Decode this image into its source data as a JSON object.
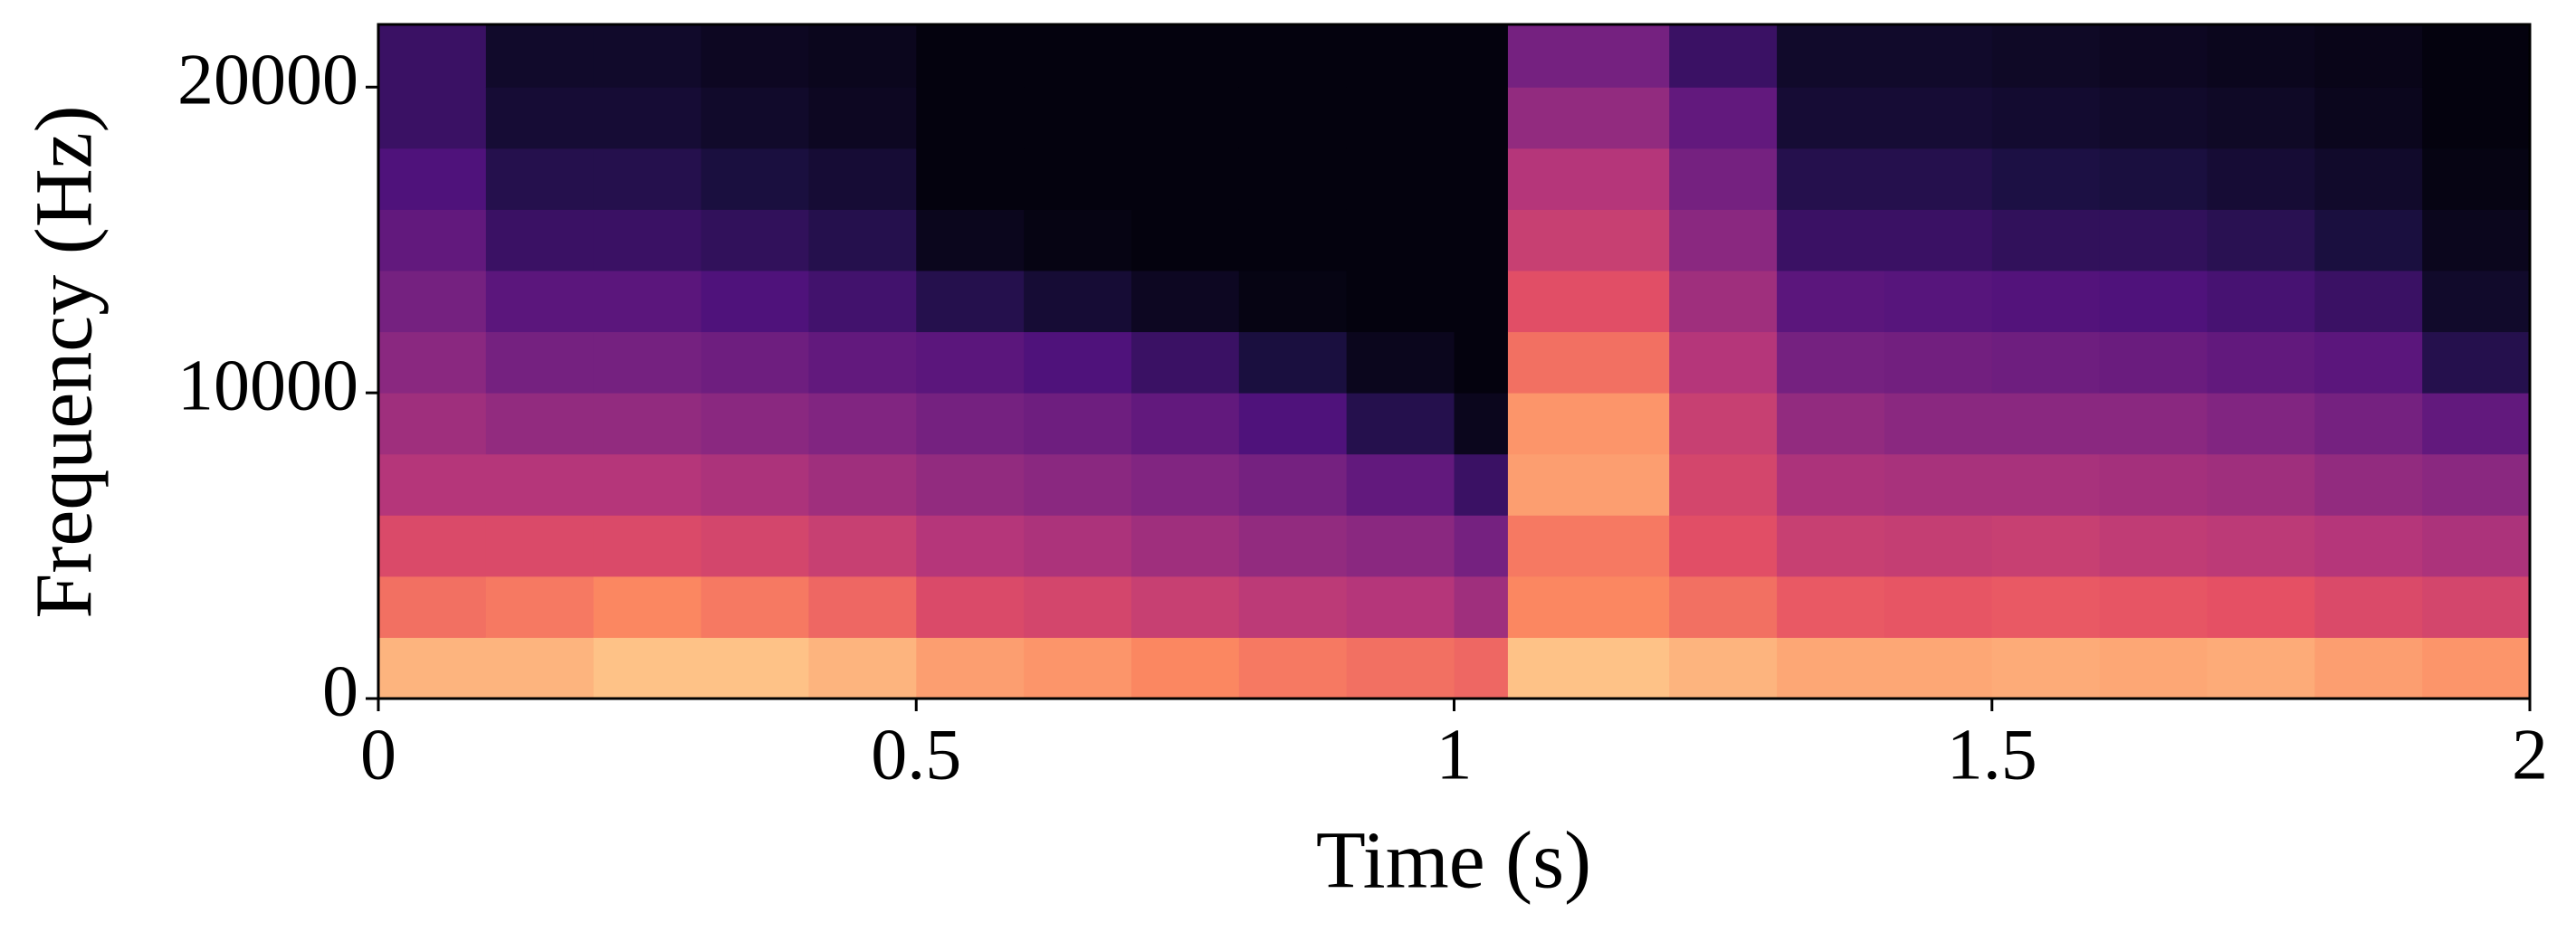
{
  "chart_data": {
    "type": "spectrogram",
    "xlabel": "Time (s)",
    "ylabel": "Frequency (Hz)",
    "xlim": [
      0,
      2
    ],
    "xticks": [
      0,
      {
        "value": 0.5,
        "label": "0.5"
      },
      1,
      {
        "value": 1.5,
        "label": "1.5"
      },
      2
    ],
    "ylim": [
      0,
      22050
    ],
    "yticks": [
      0,
      10000,
      20000
    ],
    "colormap": "magma",
    "x": [
      0,
      0.1,
      0.2,
      0.3,
      0.4,
      0.5,
      0.6,
      0.7,
      0.8,
      0.9,
      1.0,
      1.05,
      1.2,
      1.3,
      1.4,
      1.5,
      1.6,
      1.7,
      1.8,
      1.9
    ],
    "y": [
      0,
      2000,
      4000,
      6000,
      8000,
      10000,
      12000,
      14000,
      16000,
      18000,
      20000
    ],
    "values": [
      [
        0.85,
        0.7,
        0.6,
        0.5,
        0.45,
        0.4,
        0.35,
        0.3,
        0.25,
        0.2,
        0.2
      ],
      [
        0.85,
        0.72,
        0.6,
        0.5,
        0.42,
        0.35,
        0.28,
        0.2,
        0.15,
        0.1,
        0.08
      ],
      [
        0.88,
        0.75,
        0.6,
        0.5,
        0.42,
        0.35,
        0.28,
        0.2,
        0.15,
        0.1,
        0.08
      ],
      [
        0.88,
        0.72,
        0.58,
        0.48,
        0.4,
        0.33,
        0.25,
        0.18,
        0.12,
        0.08,
        0.06
      ],
      [
        0.85,
        0.68,
        0.55,
        0.45,
        0.38,
        0.3,
        0.22,
        0.15,
        0.1,
        0.06,
        0.05
      ],
      [
        0.8,
        0.6,
        0.5,
        0.42,
        0.35,
        0.28,
        0.15,
        0.05,
        0.02,
        0.02,
        0.02
      ],
      [
        0.78,
        0.58,
        0.48,
        0.4,
        0.33,
        0.25,
        0.1,
        0.03,
        0.02,
        0.02,
        0.02
      ],
      [
        0.75,
        0.55,
        0.45,
        0.38,
        0.3,
        0.2,
        0.06,
        0.02,
        0.02,
        0.02,
        0.02
      ],
      [
        0.72,
        0.52,
        0.42,
        0.35,
        0.25,
        0.12,
        0.03,
        0.02,
        0.02,
        0.02,
        0.02
      ],
      [
        0.7,
        0.5,
        0.4,
        0.3,
        0.15,
        0.05,
        0.02,
        0.02,
        0.02,
        0.02,
        0.02
      ],
      [
        0.68,
        0.45,
        0.35,
        0.2,
        0.05,
        0.02,
        0.02,
        0.02,
        0.02,
        0.02,
        0.02
      ],
      [
        0.88,
        0.75,
        0.72,
        0.8,
        0.78,
        0.7,
        0.62,
        0.55,
        0.5,
        0.42,
        0.35
      ],
      [
        0.85,
        0.7,
        0.62,
        0.58,
        0.55,
        0.5,
        0.45,
        0.4,
        0.35,
        0.3,
        0.2
      ],
      [
        0.82,
        0.65,
        0.55,
        0.48,
        0.42,
        0.35,
        0.28,
        0.2,
        0.15,
        0.1,
        0.08
      ],
      [
        0.82,
        0.64,
        0.54,
        0.47,
        0.4,
        0.34,
        0.27,
        0.2,
        0.15,
        0.1,
        0.08
      ],
      [
        0.83,
        0.65,
        0.55,
        0.47,
        0.4,
        0.33,
        0.26,
        0.18,
        0.13,
        0.09,
        0.07
      ],
      [
        0.82,
        0.64,
        0.53,
        0.46,
        0.4,
        0.32,
        0.25,
        0.18,
        0.12,
        0.08,
        0.06
      ],
      [
        0.83,
        0.63,
        0.52,
        0.45,
        0.38,
        0.3,
        0.23,
        0.16,
        0.1,
        0.07,
        0.05
      ],
      [
        0.8,
        0.6,
        0.5,
        0.42,
        0.35,
        0.28,
        0.2,
        0.12,
        0.08,
        0.05,
        0.04
      ],
      [
        0.78,
        0.58,
        0.48,
        0.4,
        0.3,
        0.15,
        0.08,
        0.05,
        0.03,
        0.02,
        0.02
      ]
    ]
  }
}
